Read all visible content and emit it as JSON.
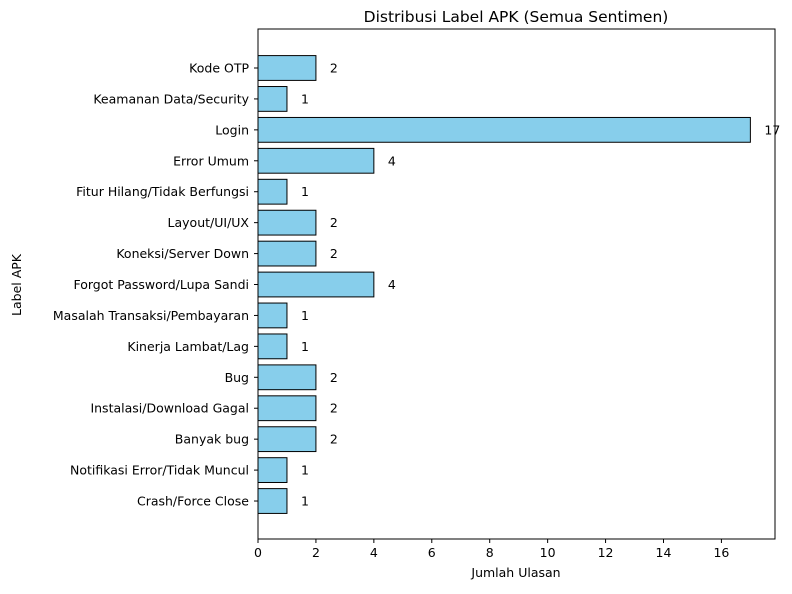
{
  "chart_data": {
    "type": "bar",
    "orientation": "horizontal",
    "title": "Distribusi Label APK (Semua Sentimen)",
    "xlabel": "Jumlah Ulasan",
    "ylabel": "Label APK",
    "categories": [
      "Kode OTP",
      "Keamanan Data/Security",
      "Login",
      "Error Umum",
      "Fitur Hilang/Tidak Berfungsi",
      "Layout/UI/UX",
      "Koneksi/Server Down",
      "Forgot Password/Lupa Sandi",
      "Masalah Transaksi/Pembayaran",
      "Kinerja Lambat/Lag",
      "Bug",
      "Instalasi/Download Gagal",
      "Banyak bug",
      "Notifikasi Error/Tidak Muncul",
      "Crash/Force Close"
    ],
    "values": [
      2,
      1,
      17,
      4,
      1,
      2,
      2,
      4,
      1,
      1,
      2,
      2,
      2,
      1,
      1
    ],
    "xlim": [
      0,
      17.85
    ],
    "xticks": [
      0,
      2,
      4,
      6,
      8,
      10,
      12,
      14,
      16
    ],
    "data_labels": true,
    "grid": false,
    "legend": "none",
    "colors": {
      "bar_fill": "#87ceeb",
      "bar_edge": "#000000",
      "axis": "#000000",
      "background": "#ffffff"
    }
  }
}
